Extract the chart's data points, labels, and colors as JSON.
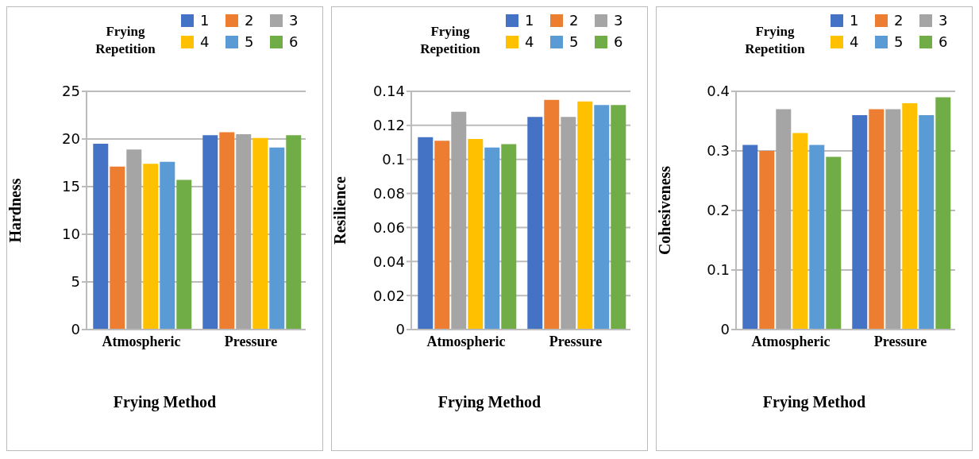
{
  "chart_data": [
    {
      "type": "bar",
      "categories": [
        "Atmospheric",
        "Pressure"
      ],
      "xlabel": "Frying Method",
      "ylabel": "Hardness",
      "legend_title": "Frying Repetition",
      "legend": "top right",
      "grid": "y",
      "ylim": [
        0,
        25
      ],
      "yticks": [
        0,
        5,
        10,
        15,
        20,
        25
      ],
      "series": [
        {
          "name": "1",
          "color": "#4472c4",
          "values": [
            19.5,
            20.4
          ]
        },
        {
          "name": "2",
          "color": "#ed7d31",
          "values": [
            17.1,
            20.7
          ]
        },
        {
          "name": "3",
          "color": "#a5a5a5",
          "values": [
            18.9,
            20.5
          ]
        },
        {
          "name": "4",
          "color": "#ffc000",
          "values": [
            17.4,
            20.1
          ]
        },
        {
          "name": "5",
          "color": "#5b9bd5",
          "values": [
            17.6,
            19.1
          ]
        },
        {
          "name": "6",
          "color": "#70ad47",
          "values": [
            15.7,
            20.4
          ]
        }
      ]
    },
    {
      "type": "bar",
      "categories": [
        "Atmospheric",
        "Pressure"
      ],
      "xlabel": "Frying Method",
      "ylabel": "Resilience",
      "legend_title": "Frying Repetition",
      "legend": "top right",
      "grid": "y",
      "ylim": [
        0,
        0.14
      ],
      "yticks": [
        0,
        0.02,
        0.04,
        0.06,
        0.08,
        0.1,
        0.12,
        0.14
      ],
      "series": [
        {
          "name": "1",
          "color": "#4472c4",
          "values": [
            0.113,
            0.125
          ]
        },
        {
          "name": "2",
          "color": "#ed7d31",
          "values": [
            0.111,
            0.135
          ]
        },
        {
          "name": "3",
          "color": "#a5a5a5",
          "values": [
            0.128,
            0.125
          ]
        },
        {
          "name": "4",
          "color": "#ffc000",
          "values": [
            0.112,
            0.134
          ]
        },
        {
          "name": "5",
          "color": "#5b9bd5",
          "values": [
            0.107,
            0.132
          ]
        },
        {
          "name": "6",
          "color": "#70ad47",
          "values": [
            0.109,
            0.132
          ]
        }
      ]
    },
    {
      "type": "bar",
      "categories": [
        "Atmospheric",
        "Pressure"
      ],
      "xlabel": "Frying Method",
      "ylabel": "Cohesiveness",
      "legend_title": "Frying Repetition",
      "legend": "top right",
      "grid": "y",
      "ylim": [
        0,
        0.4
      ],
      "yticks": [
        0,
        0.1,
        0.2,
        0.3,
        0.4
      ],
      "series": [
        {
          "name": "1",
          "color": "#4472c4",
          "values": [
            0.31,
            0.36
          ]
        },
        {
          "name": "2",
          "color": "#ed7d31",
          "values": [
            0.3,
            0.37
          ]
        },
        {
          "name": "3",
          "color": "#a5a5a5",
          "values": [
            0.37,
            0.37
          ]
        },
        {
          "name": "4",
          "color": "#ffc000",
          "values": [
            0.33,
            0.38
          ]
        },
        {
          "name": "5",
          "color": "#5b9bd5",
          "values": [
            0.31,
            0.36
          ]
        },
        {
          "name": "6",
          "color": "#70ad47",
          "values": [
            0.29,
            0.39
          ]
        }
      ]
    }
  ]
}
